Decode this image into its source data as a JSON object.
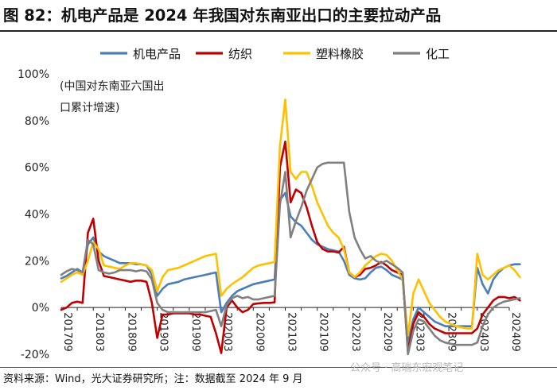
{
  "title": "图 82：机电产品是 2024 年我国对东南亚出口的主要拉动产品",
  "source": "资料来源：Wind，光大证券研究所；注：数据截至 2024 年 9 月",
  "watermark": "公众号 · 高瑞东宏观笔记",
  "chart_data": {
    "type": "line",
    "title": "机电产品是 2024 年我国对东南亚出口的主要拉动产品",
    "ylabel": "",
    "xlabel": "",
    "note_lines": [
      "(中国对东南亚六国出",
      "口累计增速)"
    ],
    "ylim": [
      -20,
      100
    ],
    "yticks": [
      -20,
      0,
      20,
      40,
      60,
      80,
      100
    ],
    "ytick_labels": [
      "-20%",
      "0%",
      "20%",
      "40%",
      "60%",
      "80%",
      "100%"
    ],
    "x_labels": [
      "201709",
      "201803",
      "201809",
      "201903",
      "201909",
      "202003",
      "202009",
      "202103",
      "202109",
      "202203",
      "202209",
      "202303",
      "202309",
      "202403",
      "202409"
    ],
    "x_label_months": [
      0,
      6,
      12,
      18,
      24,
      30,
      36,
      42,
      48,
      54,
      60,
      66,
      72,
      78,
      84
    ],
    "n_points": 85,
    "legend_position": "top",
    "series": [
      {
        "name": "机电产品",
        "color": "#4A7EBB",
        "values": [
          12.5,
          13.5,
          15.0,
          16.5,
          15.0,
          27.0,
          30.0,
          24.0,
          22.0,
          21.0,
          20.0,
          19.0,
          19.0,
          19.0,
          18.5,
          18.5,
          18.0,
          14.0,
          5.0,
          8.0,
          10.0,
          10.5,
          11.0,
          12.0,
          12.5,
          13.0,
          13.5,
          14.0,
          14.5,
          15.0,
          -2.0,
          2.0,
          5.0,
          7.0,
          8.0,
          9.0,
          10.0,
          10.5,
          11.0,
          11.5,
          12.0,
          46.0,
          49.0,
          39.0,
          36.5,
          35.0,
          32.0,
          29.0,
          27.0,
          26.0,
          25.0,
          24.5,
          24.0,
          20.0,
          14.0,
          12.5,
          12.0,
          12.5,
          15.0,
          17.0,
          17.5,
          16.0,
          14.0,
          13.0,
          12.0,
          -15.0,
          -5.0,
          0.0,
          -2.0,
          -4.0,
          -6.0,
          -7.0,
          -8.0,
          -8.0,
          -8.0,
          -8.0,
          -8.0,
          -8.0,
          17.0,
          10.0,
          6.0,
          12.0,
          15.0,
          17.0,
          18.0,
          18.5,
          18.5
        ]
      },
      {
        "name": "纺织",
        "color": "#C00000",
        "values": [
          -1.0,
          0.0,
          2.0,
          2.5,
          2.0,
          32.0,
          38.0,
          20.0,
          13.5,
          13.0,
          12.5,
          12.0,
          11.5,
          11.0,
          11.5,
          11.5,
          11.0,
          2.0,
          -13.0,
          -3.0,
          -3.0,
          -2.5,
          -2.5,
          -2.5,
          -2.5,
          -3.0,
          -3.0,
          -3.5,
          -4.0,
          -11.0,
          -19.5,
          0.0,
          3.0,
          0.0,
          -2.0,
          -1.0,
          1.5,
          1.8,
          2.0,
          2.0,
          2.2,
          60.0,
          71.0,
          45.0,
          50.5,
          49.0,
          43.0,
          35.0,
          28.0,
          25.0,
          24.0,
          24.0,
          23.5,
          26.0,
          15.0,
          13.0,
          14.0,
          16.5,
          17.0,
          18.0,
          19.5,
          18.0,
          16.0,
          15.0,
          14.0,
          -19.0,
          -7.0,
          -2.0,
          -4.0,
          -7.0,
          -9.0,
          -10.0,
          -11.0,
          -11.0,
          -11.0,
          -11.0,
          -11.0,
          -11.0,
          -9.0,
          -3.0,
          0.0,
          3.0,
          4.5,
          4.5,
          4.0,
          4.5,
          3.0
        ]
      },
      {
        "name": "塑料橡胶",
        "color": "#FFC000",
        "values": [
          11.0,
          12.5,
          14.0,
          15.0,
          14.0,
          20.0,
          28.0,
          25.0,
          18.0,
          17.5,
          17.0,
          16.5,
          18.0,
          19.0,
          19.0,
          18.5,
          18.0,
          16.0,
          7.0,
          13.0,
          16.0,
          16.5,
          17.0,
          18.0,
          19.0,
          20.0,
          21.0,
          22.0,
          22.5,
          23.0,
          5.0,
          8.0,
          10.0,
          11.5,
          13.0,
          15.0,
          17.0,
          18.0,
          18.5,
          19.0,
          19.5,
          69.0,
          89.0,
          58.0,
          55.0,
          58.0,
          58.0,
          52.0,
          45.0,
          40.0,
          35.0,
          32.0,
          30.0,
          25.0,
          15.0,
          13.0,
          15.0,
          18.0,
          20.0,
          22.0,
          23.0,
          22.5,
          20.0,
          16.0,
          12.0,
          -12.0,
          6.0,
          12.0,
          7.0,
          2.0,
          -1.0,
          -4.0,
          -6.0,
          -7.0,
          -8.0,
          -8.5,
          -9.0,
          -9.0,
          23.0,
          14.0,
          12.0,
          14.0,
          16.0,
          17.0,
          18.0,
          16.0,
          13.0
        ]
      },
      {
        "name": "化工",
        "color": "#808080",
        "values": [
          14.0,
          15.5,
          16.5,
          16.0,
          15.0,
          29.0,
          27.0,
          16.0,
          15.0,
          14.5,
          15.0,
          16.0,
          16.0,
          16.0,
          15.5,
          16.0,
          15.5,
          12.0,
          2.0,
          -1.0,
          -2.0,
          -2.0,
          -2.0,
          -2.0,
          -2.0,
          -2.0,
          -2.0,
          -2.0,
          -1.5,
          -1.0,
          -8.0,
          1.0,
          4.0,
          5.0,
          4.0,
          4.5,
          3.5,
          3.5,
          4.0,
          4.5,
          5.0,
          44.0,
          58.0,
          30.0,
          37.0,
          43.0,
          50.0,
          55.0,
          60.0,
          61.5,
          62.0,
          62.0,
          62.0,
          62.0,
          41.0,
          30.0,
          25.0,
          21.0,
          22.0,
          20.0,
          19.0,
          20.0,
          18.5,
          17.0,
          15.0,
          -20.0,
          -10.0,
          -5.0,
          -6.0,
          -9.0,
          -12.0,
          -14.0,
          -15.0,
          -15.5,
          -16.0,
          -16.0,
          -16.0,
          -16.0,
          -15.0,
          -8.0,
          -3.0,
          0.0,
          1.5,
          2.5,
          3.0,
          3.5,
          4.0
        ]
      }
    ]
  }
}
